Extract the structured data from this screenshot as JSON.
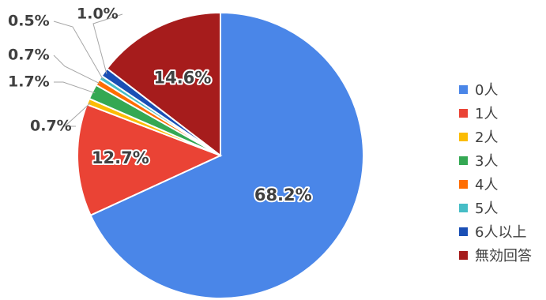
{
  "chart_data": {
    "type": "pie",
    "title": "",
    "categories": [
      "0人",
      "1人",
      "2人",
      "3人",
      "4人",
      "5人",
      "6人以上",
      "無効回答"
    ],
    "values": [
      68.2,
      12.7,
      0.7,
      1.7,
      0.7,
      0.5,
      1.0,
      14.6
    ],
    "labels": [
      "68.2%",
      "12.7%",
      "0.7%",
      "1.7%",
      "0.7%",
      "0.5%",
      "1.0%",
      "14.6%"
    ],
    "colors": [
      "#4a86e8",
      "#ea4335",
      "#fbbc04",
      "#34a853",
      "#ff6d01",
      "#46bdc6",
      "#1a4fb5",
      "#a61c1c"
    ],
    "start_angle_deg": 0,
    "direction": "clockwise",
    "legend_position": "right"
  }
}
